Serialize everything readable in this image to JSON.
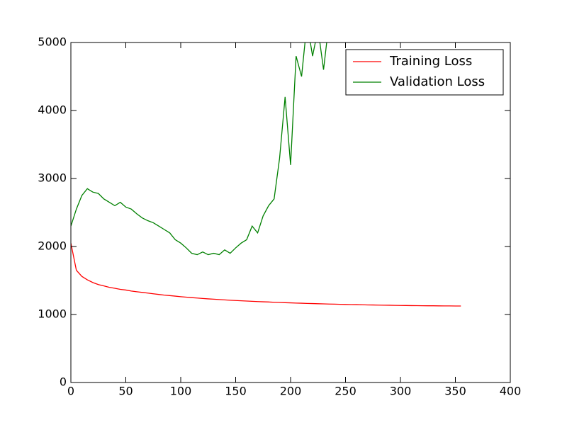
{
  "chart_data": {
    "type": "line",
    "x": [
      0,
      5,
      10,
      15,
      20,
      25,
      30,
      35,
      40,
      45,
      50,
      55,
      60,
      65,
      70,
      75,
      80,
      85,
      90,
      95,
      100,
      105,
      110,
      115,
      120,
      125,
      130,
      135,
      140,
      145,
      150,
      155,
      160,
      165,
      170,
      175,
      180,
      185,
      190,
      195,
      200,
      205,
      210,
      215,
      220,
      225,
      230,
      235,
      240,
      245,
      250,
      255,
      260,
      265,
      270,
      275,
      280,
      285,
      290,
      295,
      300,
      305,
      310,
      315,
      320,
      325,
      330,
      335,
      340,
      345,
      350,
      355
    ],
    "series": [
      {
        "name": "Training Loss",
        "color": "#ff0000",
        "values": [
          2050,
          1650,
          1560,
          1510,
          1470,
          1440,
          1420,
          1400,
          1385,
          1370,
          1360,
          1345,
          1335,
          1325,
          1315,
          1305,
          1295,
          1285,
          1278,
          1270,
          1262,
          1255,
          1248,
          1242,
          1236,
          1230,
          1225,
          1220,
          1215,
          1210,
          1206,
          1202,
          1198,
          1194,
          1190,
          1187,
          1184,
          1180,
          1177,
          1174,
          1171,
          1168,
          1166,
          1163,
          1161,
          1158,
          1156,
          1154,
          1152,
          1150,
          1148,
          1146,
          1145,
          1143,
          1141,
          1140,
          1138,
          1137,
          1136,
          1134,
          1133,
          1132,
          1131,
          1130,
          1129,
          1128,
          1128,
          1127,
          1126,
          1126,
          1125,
          1125
        ]
      },
      {
        "name": "Validation Loss",
        "color": "#008000",
        "values": [
          2300,
          2550,
          2750,
          2850,
          2800,
          2780,
          2700,
          2650,
          2600,
          2650,
          2580,
          2550,
          2480,
          2420,
          2380,
          2350,
          2300,
          2250,
          2200,
          2100,
          2050,
          1980,
          1900,
          1880,
          1920,
          1880,
          1900,
          1880,
          1950,
          1900,
          1980,
          2050,
          2100,
          2300,
          2200,
          2450,
          2600,
          2700,
          3300,
          4200,
          3200,
          4800,
          4500,
          5300,
          4800,
          5200,
          4600,
          5300,
          null,
          null,
          null,
          null,
          null,
          null,
          null,
          null,
          null,
          null,
          null,
          null,
          null,
          null,
          null,
          null,
          null,
          null,
          null,
          null,
          null,
          null,
          null,
          null
        ]
      }
    ],
    "xlim": [
      0,
      400
    ],
    "xticks": [
      0,
      50,
      100,
      150,
      200,
      250,
      300,
      350,
      400
    ],
    "ylim": [
      0,
      5000
    ],
    "yticks": [
      0,
      1000,
      2000,
      3000,
      4000,
      5000
    ],
    "legend": "upper right"
  }
}
